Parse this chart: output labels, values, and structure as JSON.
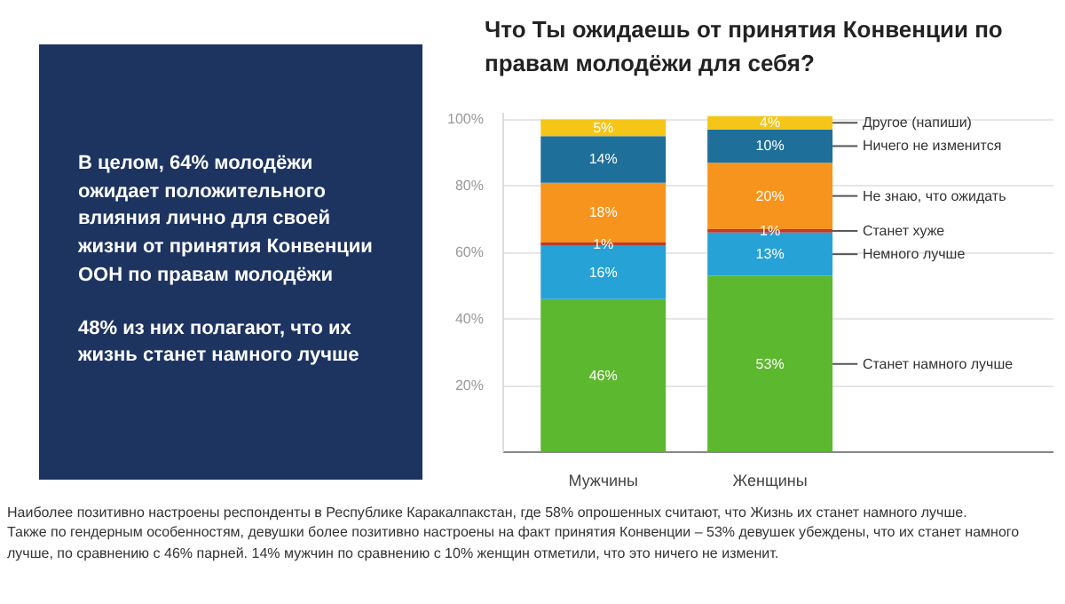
{
  "chart_data": {
    "type": "bar",
    "stacked": true,
    "title": "Что Ты ожидаешь от принятия Конвенции по правам молодёжи для себя?",
    "categories": [
      "Мужчины",
      "Женщины"
    ],
    "series": [
      {
        "name": "Станет намного лучше",
        "color": "#5cb82e",
        "values": [
          46,
          53
        ],
        "value_labels": [
          "46%",
          "53%"
        ]
      },
      {
        "name": "Немного лучше",
        "color": "#26a2d6",
        "values": [
          16,
          13
        ],
        "value_labels": [
          "16%",
          "13%"
        ]
      },
      {
        "name": "Станет хуже",
        "color": "#c0392b",
        "values": [
          1,
          1
        ],
        "value_labels": [
          "1%",
          "1%"
        ]
      },
      {
        "name": "Не знаю, что ожидать",
        "color": "#f7941d",
        "values": [
          18,
          20
        ],
        "value_labels": [
          "18%",
          "20%"
        ]
      },
      {
        "name": "Ничего не изменится",
        "color": "#1e6f99",
        "values": [
          14,
          10
        ],
        "value_labels": [
          "14%",
          "10%"
        ]
      },
      {
        "name": "Другое (напиши)",
        "color": "#f5c518",
        "values": [
          5,
          4
        ],
        "value_labels": [
          "5%",
          "4%"
        ]
      }
    ],
    "ylim": [
      0,
      102
    ],
    "yticks": [
      {
        "value": 20,
        "label": "20%"
      },
      {
        "value": 40,
        "label": "40%"
      },
      {
        "value": 60,
        "label": "60%"
      },
      {
        "value": 80,
        "label": "80%"
      },
      {
        "value": 100,
        "label": "100%"
      }
    ],
    "grid": "y",
    "legend": "right",
    "annotations": [
      "В целом, 64% молодёжи ожидает положительного влияния лично для своей жизни от принятия Конвенции ООН по правам молодёжи",
      "48% из них полагают, что их жизнь станет намного лучше",
      "Наиболее позитивно настроены респонденты в Республике Каракалпакстан, где 58% опрошенных считают, что Жизнь их станет намного лучше.",
      "Также по гендерным особенностям, девушки более позитивно настроены на факт принятия Конвенции – 53% девушек убеждены, что их станет намного лучше, по сравнению с 46% парней. 14% мужчин по сравнению с 10% женщин отметили, что это ничего не изменит."
    ]
  }
}
